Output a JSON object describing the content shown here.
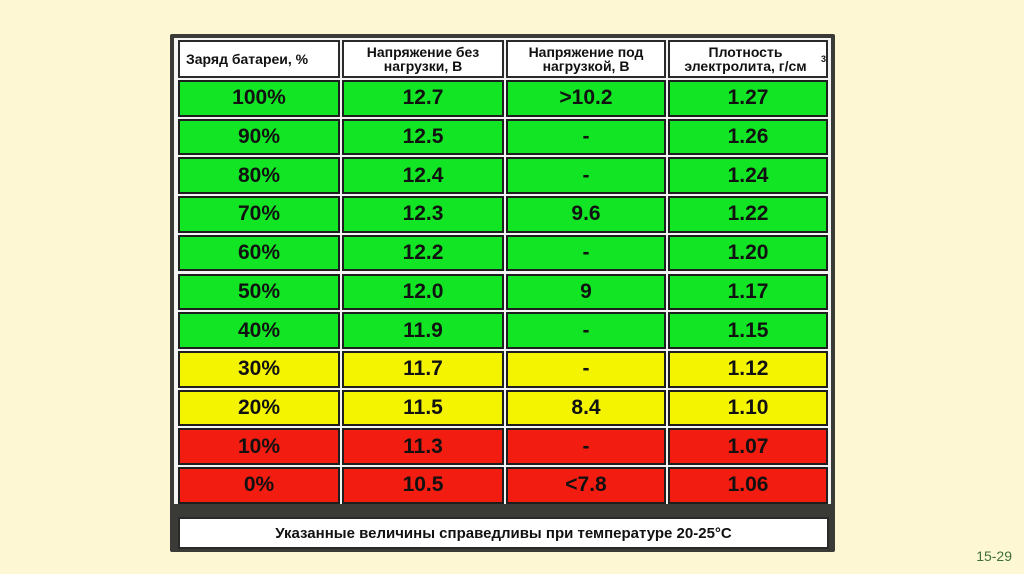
{
  "table": {
    "headers": [
      "Заряд батареи, %",
      "Напряжение без нагрузки, В",
      "Напряжение под нагрузкой, В",
      "Плотность электролита, г/см",
      "3"
    ],
    "rows": [
      {
        "charge": "100%",
        "no_load": "12.7",
        "under_load": ">10.2",
        "density": "1.27",
        "color": "green"
      },
      {
        "charge": "90%",
        "no_load": "12.5",
        "under_load": "-",
        "density": "1.26",
        "color": "green"
      },
      {
        "charge": "80%",
        "no_load": "12.4",
        "under_load": "-",
        "density": "1.24",
        "color": "green"
      },
      {
        "charge": "70%",
        "no_load": "12.3",
        "under_load": "9.6",
        "density": "1.22",
        "color": "green"
      },
      {
        "charge": "60%",
        "no_load": "12.2",
        "under_load": "-",
        "density": "1.20",
        "color": "green"
      },
      {
        "charge": "50%",
        "no_load": "12.0",
        "under_load": "9",
        "density": "1.17",
        "color": "green"
      },
      {
        "charge": "40%",
        "no_load": "11.9",
        "under_load": "-",
        "density": "1.15",
        "color": "green"
      },
      {
        "charge": "30%",
        "no_load": "11.7",
        "under_load": "-",
        "density": "1.12",
        "color": "yellow"
      },
      {
        "charge": "20%",
        "no_load": "11.5",
        "under_load": "8.4",
        "density": "1.10",
        "color": "yellow"
      },
      {
        "charge": "10%",
        "no_load": "11.3",
        "under_load": "-",
        "density": "1.07",
        "color": "red"
      },
      {
        "charge": "0%",
        "no_load": "10.5",
        "under_load": "<7.8",
        "density": "1.06",
        "color": "red"
      }
    ]
  },
  "colors": {
    "green": "#12e624",
    "yellow": "#f4f400",
    "red": "#f21c10"
  },
  "footnote": "Указанные величины справедливы при температуре 20-25°C",
  "page_number": "15-29"
}
